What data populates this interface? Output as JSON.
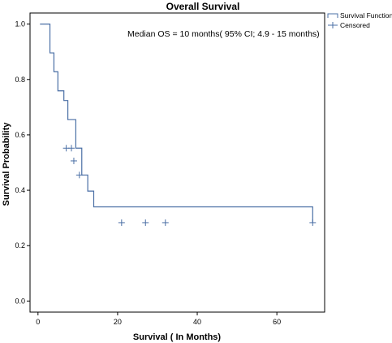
{
  "chart_data": {
    "type": "line",
    "title": "Overall Survival",
    "xlabel": "Survival ( In Months)",
    "ylabel": "Survival Probability",
    "annotation": "Median OS = 10 months( 95% CI; 4.9 - 15 months)",
    "xlim": [
      -2,
      72
    ],
    "ylim": [
      -0.04,
      1.04
    ],
    "x_ticks": [
      0,
      20,
      40,
      60
    ],
    "y_ticks": [
      0.0,
      0.2,
      0.4,
      0.6,
      0.8,
      1.0
    ],
    "x_tick_labels": [
      "0",
      "20",
      "40",
      "60"
    ],
    "y_tick_labels": [
      "0.0",
      "0.2",
      "0.4",
      "0.6",
      "0.8",
      "1.0"
    ],
    "grid": false,
    "legend_position": "top-right",
    "line_color": "#4a6fa5",
    "series": [
      {
        "name": "Survival Function",
        "step_x": [
          0.5,
          3,
          4,
          5,
          6.5,
          7.5,
          9.5,
          11,
          12.5,
          14,
          69
        ],
        "step_y": [
          1.0,
          0.896,
          0.828,
          0.759,
          0.724,
          0.655,
          0.552,
          0.455,
          0.397,
          0.34,
          0.283
        ]
      },
      {
        "name": "Censored",
        "x": [
          7.1,
          8.4,
          9.0,
          10.4,
          21,
          27,
          32,
          69
        ],
        "y": [
          0.552,
          0.552,
          0.506,
          0.455,
          0.283,
          0.283,
          0.283,
          0.283
        ]
      }
    ]
  }
}
